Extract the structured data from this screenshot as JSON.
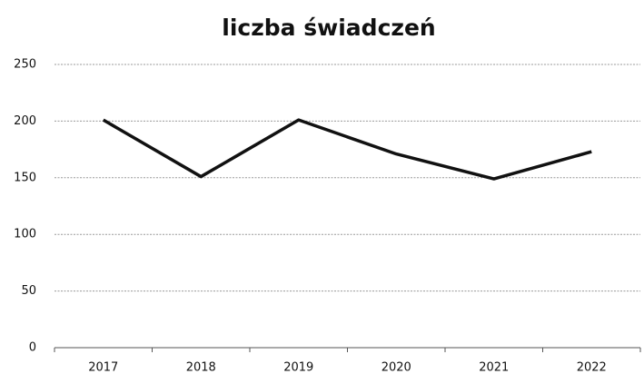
{
  "chart_data": {
    "type": "line",
    "title": "liczba świadczeń",
    "categories": [
      "2017",
      "2018",
      "2019",
      "2020",
      "2021",
      "2022"
    ],
    "values": [
      201,
      151,
      201,
      171,
      149,
      173
    ],
    "color": "#111111",
    "ylim": [
      0,
      250
    ],
    "yticks": [
      0,
      50,
      100,
      150,
      200,
      250
    ],
    "grid": true
  }
}
